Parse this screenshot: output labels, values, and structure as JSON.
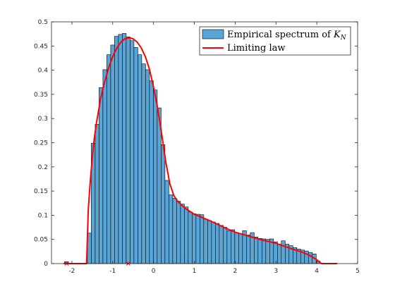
{
  "chart_data": {
    "type": "bar",
    "xlim": [
      -2.5,
      5
    ],
    "ylim": [
      0,
      0.5
    ],
    "x_ticks": [
      -2,
      -1,
      0,
      1,
      2,
      3,
      4,
      5
    ],
    "y_ticks": [
      0,
      0.05,
      0.1,
      0.15,
      0.2,
      0.25,
      0.3,
      0.35,
      0.4,
      0.45,
      0.5
    ],
    "x_tick_labels": [
      "-2",
      "-1",
      "0",
      "1",
      "2",
      "3",
      "4",
      "5"
    ],
    "y_tick_labels": [
      "0",
      "0.05",
      "0.1",
      "0.15",
      "0.2",
      "0.25",
      "0.3",
      "0.35",
      "0.4",
      "0.45",
      "0.5"
    ],
    "grid": false,
    "legend_position": "top-right",
    "bar_color": "#5aa5d6",
    "line_color": "#ff0000",
    "histogram": {
      "name": "Empirical spectrum of",
      "name_math": "K",
      "name_subscript": "N",
      "bin_width": 0.095,
      "bin_start": [
        -2.18,
        -1.62,
        -1.525,
        -1.43,
        -1.335,
        -1.24,
        -1.145,
        -1.05,
        -0.955,
        -0.86,
        -0.765,
        -0.67,
        -0.575,
        -0.48,
        -0.385,
        -0.29,
        -0.195,
        -0.1,
        -0.005,
        0.09,
        0.185,
        0.28,
        0.375,
        0.47,
        0.565,
        0.66,
        0.755,
        0.85,
        0.945,
        1.04,
        1.135,
        1.23,
        1.325,
        1.42,
        1.515,
        1.61,
        1.705,
        1.8,
        1.895,
        1.99,
        2.085,
        2.18,
        2.275,
        2.37,
        2.465,
        2.56,
        2.655,
        2.75,
        2.845,
        2.94,
        3.035,
        3.13,
        3.225,
        3.32,
        3.415,
        3.51,
        3.605,
        3.7,
        3.795,
        3.89,
        3.985
      ],
      "values": [
        0.004,
        0.063,
        0.249,
        0.288,
        0.364,
        0.401,
        0.432,
        0.452,
        0.47,
        0.474,
        0.476,
        0.469,
        0.461,
        0.447,
        0.432,
        0.413,
        0.401,
        0.378,
        0.359,
        0.322,
        0.246,
        0.172,
        0.142,
        0.135,
        0.129,
        0.123,
        0.117,
        0.107,
        0.103,
        0.102,
        0.101,
        0.092,
        0.089,
        0.086,
        0.083,
        0.079,
        0.075,
        0.068,
        0.07,
        0.064,
        0.062,
        0.068,
        0.059,
        0.064,
        0.055,
        0.052,
        0.051,
        0.05,
        0.051,
        0.045,
        0.04,
        0.047,
        0.04,
        0.037,
        0.033,
        0.03,
        0.028,
        0.026,
        0.023,
        0.02,
        0.005
      ]
    },
    "curve": {
      "name": "Limiting law",
      "x": [
        -2.2,
        -1.64,
        -1.6,
        -1.55,
        -1.5,
        -1.45,
        -1.4,
        -1.3,
        -1.2,
        -1.1,
        -1.0,
        -0.9,
        -0.8,
        -0.7,
        -0.6,
        -0.5,
        -0.4,
        -0.3,
        -0.2,
        -0.1,
        0.0,
        0.1,
        0.2,
        0.3,
        0.4,
        0.5,
        0.6,
        0.7,
        0.8,
        1.0,
        1.2,
        1.4,
        1.6,
        1.8,
        2.0,
        2.2,
        2.4,
        2.6,
        2.8,
        3.0,
        3.2,
        3.4,
        3.6,
        3.8,
        4.0,
        4.08,
        4.12,
        4.5
      ],
      "y": [
        0,
        0,
        0.11,
        0.17,
        0.22,
        0.26,
        0.29,
        0.34,
        0.375,
        0.405,
        0.428,
        0.446,
        0.458,
        0.465,
        0.467,
        0.465,
        0.458,
        0.446,
        0.428,
        0.402,
        0.365,
        0.322,
        0.268,
        0.21,
        0.165,
        0.14,
        0.128,
        0.12,
        0.113,
        0.102,
        0.095,
        0.088,
        0.08,
        0.072,
        0.065,
        0.06,
        0.055,
        0.05,
        0.046,
        0.042,
        0.036,
        0.03,
        0.025,
        0.018,
        0.008,
        0.002,
        0,
        0
      ]
    },
    "markers": {
      "x": [
        -2.13,
        -0.62
      ],
      "y": [
        0,
        0
      ],
      "color": "#ff0000"
    }
  }
}
